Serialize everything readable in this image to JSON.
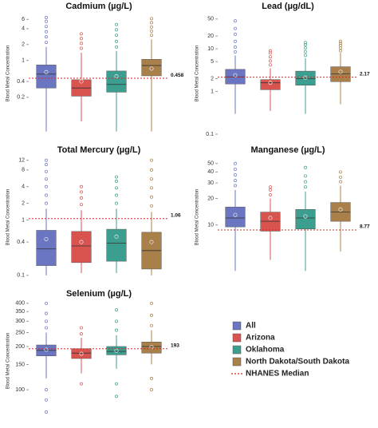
{
  "legend": {
    "series": [
      {
        "name": "All",
        "color": "#6a76c2"
      },
      {
        "name": "Arizona",
        "color": "#d9534f"
      },
      {
        "name": "Oklahoma",
        "color": "#3c9e8f"
      },
      {
        "name": "North Dakota/South Dakota",
        "color": "#a9804a"
      }
    ],
    "reference": {
      "name": "NHANES Median",
      "color": "#d62728"
    }
  },
  "chart_data": [
    {
      "type": "box",
      "title": "Cadmium (µg/L)",
      "ylabel": "Blood Metal Concentration",
      "log": true,
      "ylim": [
        0.04,
        8
      ],
      "yticks": [
        0.2,
        0.4,
        1,
        2,
        4,
        6
      ],
      "reference": 0.458,
      "boxes": [
        {
          "whislo": 0.045,
          "q1": 0.3,
          "med": 0.55,
          "q3": 0.82,
          "whishi": 1.8,
          "mean": 0.6,
          "outliers": [
            2.2,
            2.8,
            3.5,
            4.4,
            5.5,
            6.5
          ]
        },
        {
          "whislo": 0.07,
          "q1": 0.21,
          "med": 0.3,
          "q3": 0.43,
          "whishi": 1.4,
          "mean": 0.4,
          "outliers": [
            1.7,
            2.1,
            2.6,
            3.2
          ]
        },
        {
          "whislo": 0.045,
          "q1": 0.25,
          "med": 0.35,
          "q3": 0.63,
          "whishi": 1.5,
          "mean": 0.5,
          "outliers": [
            1.8,
            2.3,
            3,
            3.8,
            4.8
          ]
        },
        {
          "whislo": 0.045,
          "q1": 0.51,
          "med": 0.8,
          "q3": 1.05,
          "whishi": 2.5,
          "mean": 0.7,
          "outliers": [
            3,
            3.6,
            4.3,
            5.2,
            6.2
          ]
        }
      ]
    },
    {
      "type": "box",
      "title": "Lead (µg/dL)",
      "ylabel": "Blood Metal Concentration",
      "log": true,
      "ylim": [
        0.1,
        70
      ],
      "yticks": [
        0.1,
        1,
        2,
        5,
        10,
        20,
        50
      ],
      "reference": 2.17,
      "boxes": [
        {
          "whislo": 0.3,
          "q1": 1.5,
          "med": 2.2,
          "q3": 3.3,
          "whishi": 7,
          "mean": 2.4,
          "outliers": [
            8.5,
            11,
            15,
            22,
            30,
            45
          ]
        },
        {
          "whislo": 0.35,
          "q1": 1.1,
          "med": 1.6,
          "q3": 1.9,
          "whishi": 3.5,
          "mean": 1.6,
          "outliers": [
            4.2,
            5.2,
            6.5,
            8,
            9
          ]
        },
        {
          "whislo": 0.3,
          "q1": 1.4,
          "med": 2,
          "q3": 3,
          "whishi": 6,
          "mean": 2.1,
          "outliers": [
            7,
            8.5,
            10.5,
            12.5,
            14
          ]
        },
        {
          "whislo": 0.5,
          "q1": 1.7,
          "med": 2.6,
          "q3": 3.8,
          "whishi": 8,
          "mean": 2.9,
          "outliers": [
            9,
            10.5,
            12,
            13.5,
            15
          ]
        }
      ]
    },
    {
      "type": "box",
      "title": "Total Mercury (µg/L)",
      "ylabel": "Blood Metal Concentration",
      "log": true,
      "ylim": [
        0.09,
        14
      ],
      "yticks": [
        0.1,
        0.4,
        1,
        2,
        4,
        8,
        12
      ],
      "reference": 1.06,
      "boxes": [
        {
          "whislo": 0.1,
          "q1": 0.15,
          "med": 0.3,
          "q3": 0.65,
          "whishi": 1.6,
          "mean": 0.45,
          "outliers": [
            2,
            2.8,
            4,
            5.5,
            7.5,
            10,
            12
          ]
        },
        {
          "whislo": 0.11,
          "q1": 0.17,
          "med": 0.34,
          "q3": 0.62,
          "whishi": 1.5,
          "mean": 0.4,
          "outliers": [
            1.9,
            2.5,
            3.2,
            4
          ]
        },
        {
          "whislo": 0.11,
          "q1": 0.18,
          "med": 0.38,
          "q3": 0.68,
          "whishi": 1.6,
          "mean": 0.5,
          "outliers": [
            2,
            2.8,
            3.8,
            5,
            6
          ]
        },
        {
          "whislo": 0.1,
          "q1": 0.13,
          "med": 0.28,
          "q3": 0.6,
          "whishi": 1.4,
          "mean": 0.4,
          "outliers": [
            1.8,
            2.6,
            3.8,
            5.5,
            8,
            12
          ]
        }
      ]
    },
    {
      "type": "box",
      "title": "Manganese (µg/L)",
      "ylabel": "Blood Metal Concentration",
      "log": true,
      "ylim": [
        2.5,
        60
      ],
      "yticks": [
        10,
        20,
        30,
        40,
        50
      ],
      "reference": 8.77,
      "boxes": [
        {
          "whislo": 3,
          "q1": 9.5,
          "med": 12,
          "q3": 16,
          "whishi": 25,
          "mean": 13,
          "outliers": [
            28,
            32,
            37,
            43,
            50
          ]
        },
        {
          "whislo": 4,
          "q1": 8.5,
          "med": 11,
          "q3": 14,
          "whishi": 20,
          "mean": 12,
          "outliers": [
            22,
            25,
            27
          ]
        },
        {
          "whislo": 3,
          "q1": 9,
          "med": 12,
          "q3": 15,
          "whishi": 24,
          "mean": 12.5,
          "outliers": [
            27,
            31,
            36,
            45
          ]
        },
        {
          "whislo": 5,
          "q1": 11,
          "med": 14,
          "q3": 18,
          "whishi": 28,
          "mean": 15,
          "outliers": [
            31,
            35,
            40
          ]
        }
      ]
    },
    {
      "type": "box",
      "title": "Selenium (µg/L)",
      "ylabel": "Blood Metal Concentration",
      "log": true,
      "ylim": [
        60,
        420
      ],
      "yticks": [
        100,
        150,
        200,
        250,
        300,
        350,
        400
      ],
      "reference": 193,
      "boxes": [
        {
          "whislo": 120,
          "q1": 172,
          "med": 188,
          "q3": 205,
          "whishi": 250,
          "mean": 190,
          "outliers": [
            70,
            85,
            100,
            270,
            300,
            340,
            400
          ]
        },
        {
          "whislo": 130,
          "q1": 165,
          "med": 180,
          "q3": 193,
          "whishi": 230,
          "mean": 178,
          "outliers": [
            110,
            245,
            270
          ]
        },
        {
          "whislo": 140,
          "q1": 175,
          "med": 185,
          "q3": 200,
          "whishi": 240,
          "mean": 187,
          "outliers": [
            90,
            110,
            260,
            300,
            360
          ]
        },
        {
          "whislo": 150,
          "q1": 180,
          "med": 200,
          "q3": 215,
          "whishi": 260,
          "mean": 198,
          "outliers": [
            100,
            120,
            280,
            330,
            400
          ]
        }
      ]
    }
  ]
}
